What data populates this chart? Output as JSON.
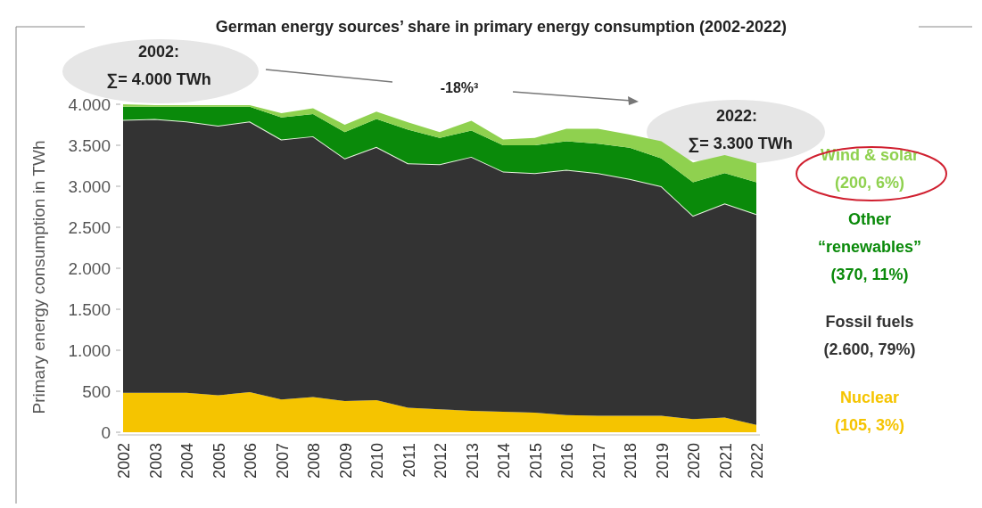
{
  "chart_data": {
    "type": "area",
    "stacked": true,
    "title": "German energy sources’ share in primary energy consumption (2002-2022)",
    "ylabel": "Primary energy consumption in TWh",
    "categories": [
      "2002",
      "2003",
      "2004",
      "2005",
      "2006",
      "2007",
      "2008",
      "2009",
      "2010",
      "2011",
      "2012",
      "2013",
      "2014",
      "2015",
      "2016",
      "2017",
      "2018",
      "2019",
      "2020",
      "2021",
      "2022"
    ],
    "series": [
      {
        "name": "Nuclear",
        "color": "#f5c400",
        "values": [
          480,
          480,
          480,
          450,
          490,
          400,
          430,
          380,
          390,
          300,
          280,
          260,
          250,
          240,
          210,
          200,
          200,
          200,
          160,
          180,
          90
        ]
      },
      {
        "name": "Fossil fuels",
        "color": "#333333",
        "values": [
          3330,
          3340,
          3310,
          3290,
          3300,
          3170,
          3180,
          2960,
          3090,
          2980,
          2990,
          3100,
          2930,
          2920,
          2990,
          2960,
          2890,
          2800,
          2480,
          2610,
          2570
        ]
      },
      {
        "name": "Other “renewables”",
        "color": "#0a8a0a",
        "values": [
          160,
          150,
          180,
          230,
          180,
          270,
          270,
          320,
          340,
          410,
          320,
          320,
          320,
          340,
          350,
          360,
          380,
          340,
          410,
          370,
          390
        ]
      },
      {
        "name": "Wind & solar",
        "color": "#8fd14f",
        "values": [
          30,
          20,
          20,
          20,
          20,
          50,
          70,
          90,
          90,
          90,
          70,
          120,
          70,
          90,
          150,
          180,
          160,
          210,
          240,
          220,
          230
        ]
      }
    ],
    "ylim": [
      0,
      4000
    ],
    "yticks": [
      0,
      500,
      {
        "value": 1000,
        "label": "1.000"
      },
      {
        "value": 1500,
        "label": "1.500"
      },
      {
        "value": 2000,
        "label": "2.000"
      },
      {
        "value": 2500,
        "label": "2.500"
      },
      {
        "value": 3000,
        "label": "3.000"
      },
      {
        "value": 3500,
        "label": "3.500"
      },
      {
        "value": 4000,
        "label": "4.000"
      }
    ],
    "legend": "right",
    "annotations": [
      "2002:",
      "∑= 4.000 TWh",
      "-18%³",
      "2022:",
      "∑= 3.300 TWh",
      "(105, 3%)",
      "(2.600, 79%)",
      "(370, 11%)",
      "(200, 6%)"
    ]
  }
}
